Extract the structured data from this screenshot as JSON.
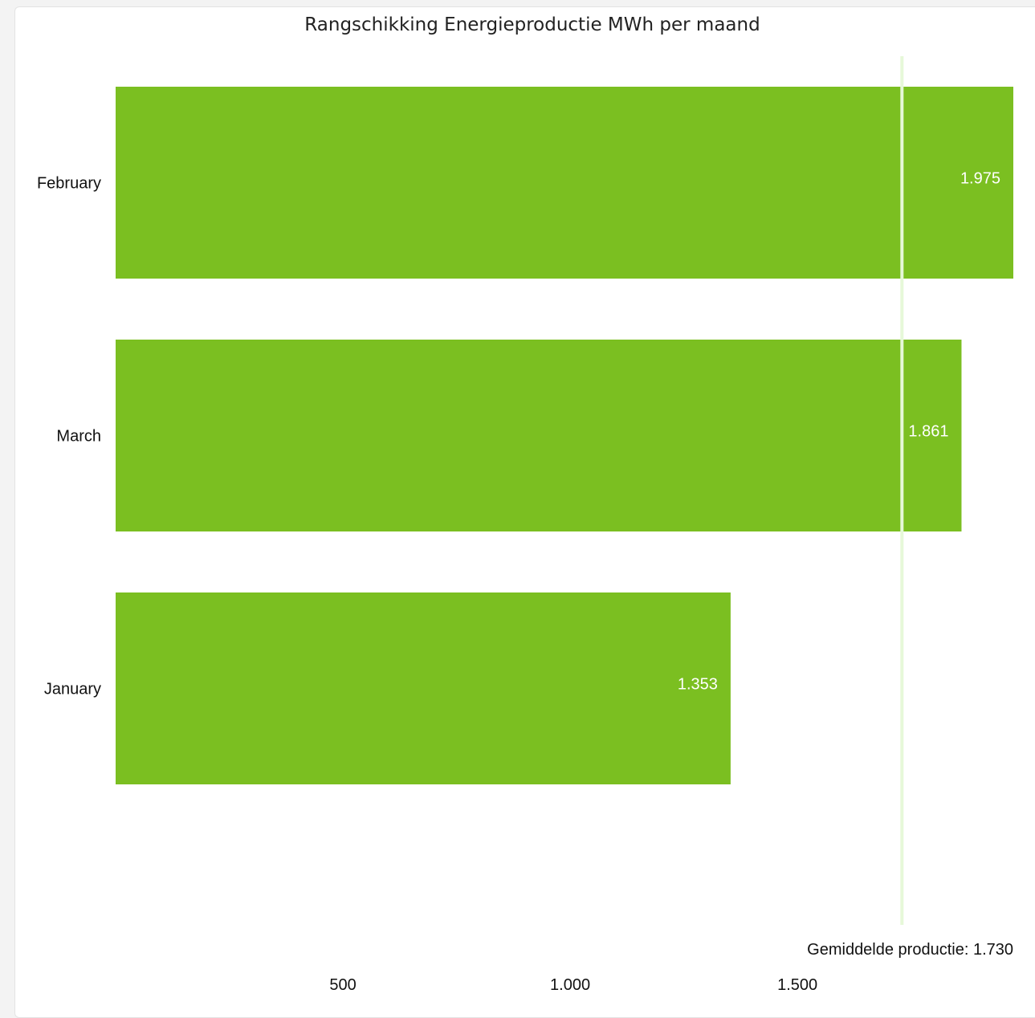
{
  "chart_data": {
    "type": "bar",
    "orientation": "horizontal",
    "title": "Rangschikking Energieproductie MWh per maand",
    "categories": [
      "February",
      "March",
      "January"
    ],
    "values": [
      1975,
      1861,
      1353
    ],
    "value_labels": [
      "1.975",
      "1.861",
      "1.353"
    ],
    "xlim": [
      0,
      1975
    ],
    "x_ticks": [
      500,
      1000,
      1500
    ],
    "x_tick_labels": [
      "500",
      "1.000",
      "1.500"
    ],
    "xlabel": "",
    "ylabel": "",
    "grid": false,
    "bar_color": "#7bbf21",
    "reference_line": {
      "value": 1730,
      "label": "Gemiddelde productie: 1.730",
      "color": "#e6f8d8"
    }
  }
}
